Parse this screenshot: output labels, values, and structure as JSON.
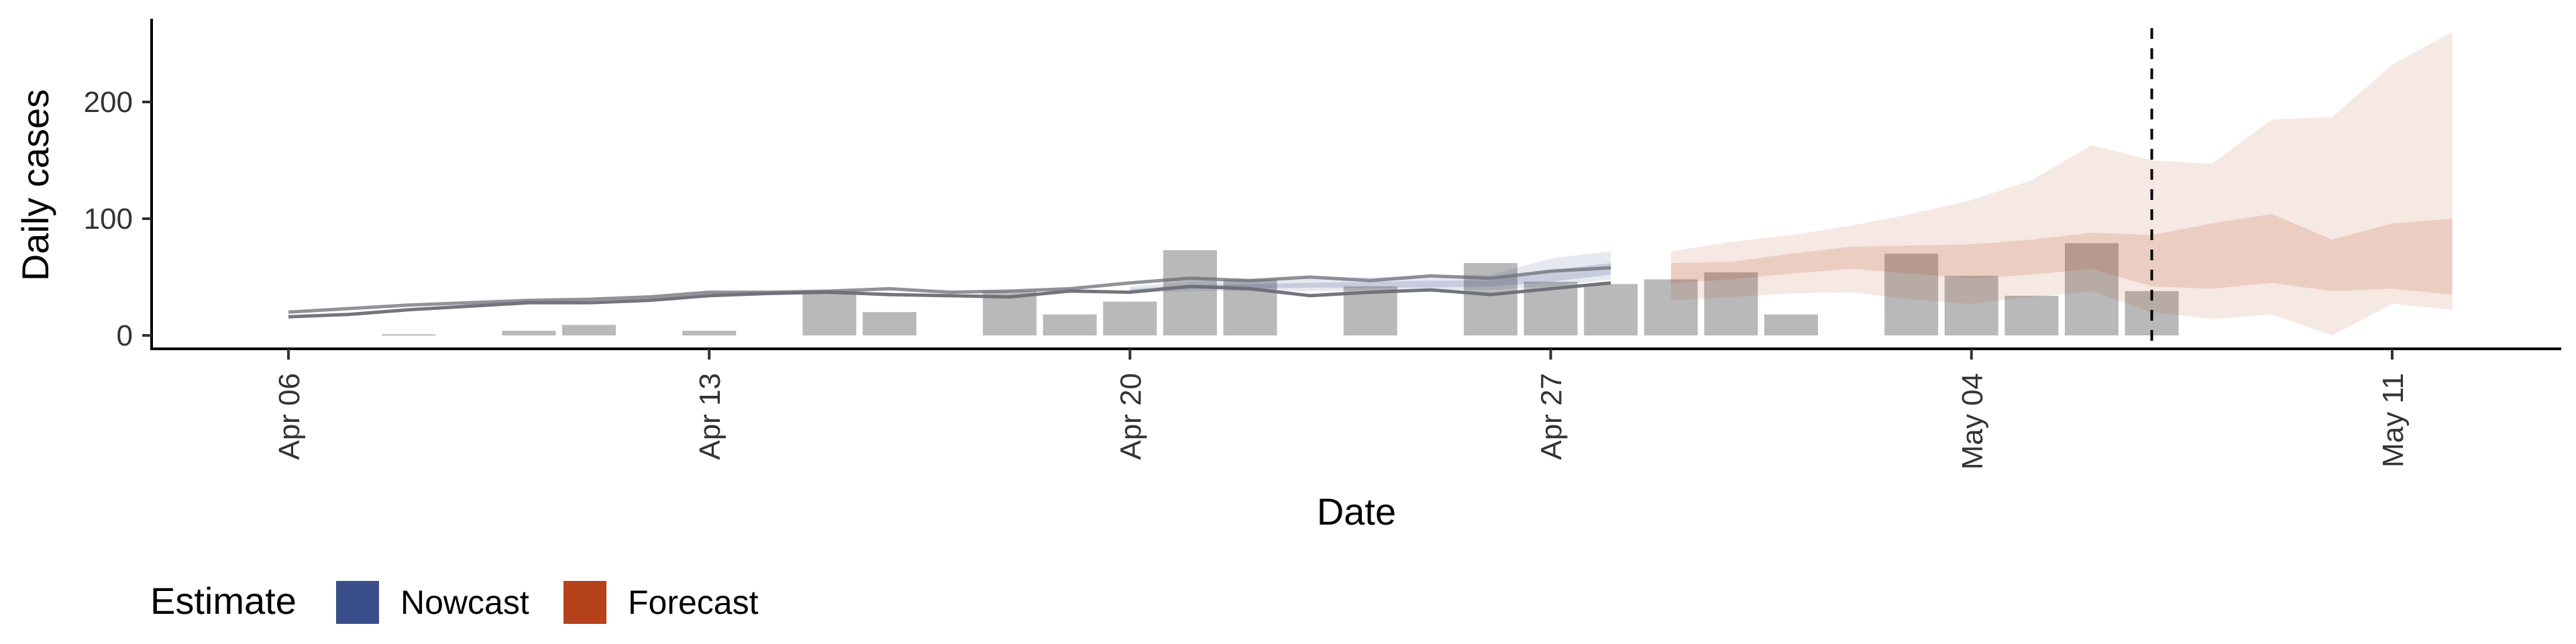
{
  "chart_data": {
    "type": "bar",
    "title": "",
    "xlabel": "Date",
    "ylabel": "Daily cases",
    "x_ticks": [
      "Apr 06",
      "Apr 13",
      "Apr 20",
      "Apr 27",
      "May 04",
      "May 11"
    ],
    "x_tick_dates": [
      "2020-04-06",
      "2020-04-13",
      "2020-04-20",
      "2020-04-27",
      "2020-05-04",
      "2020-05-11"
    ],
    "y_ticks": [
      0,
      100,
      200
    ],
    "xlim": [
      "2020-04-04",
      "2020-05-14"
    ],
    "ylim": [
      -12,
      270
    ],
    "grid": false,
    "reference_line": {
      "date": "2020-05-07",
      "style": "dashed"
    },
    "bars": {
      "color": "#9e9e9e",
      "dates": [
        "2020-04-08",
        "2020-04-10",
        "2020-04-11",
        "2020-04-13",
        "2020-04-15",
        "2020-04-16",
        "2020-04-18",
        "2020-04-19",
        "2020-04-20",
        "2020-04-21",
        "2020-04-22",
        "2020-04-24",
        "2020-04-26",
        "2020-04-27",
        "2020-04-28",
        "2020-04-29",
        "2020-04-30",
        "2020-05-01",
        "2020-05-03",
        "2020-05-04",
        "2020-05-05",
        "2020-05-06",
        "2020-05-07"
      ],
      "values": [
        1,
        4,
        9,
        4,
        38,
        20,
        38,
        18,
        29,
        73,
        48,
        42,
        62,
        46,
        44,
        48,
        54,
        18,
        70,
        51,
        34,
        79,
        38
      ]
    },
    "lines": {
      "color": "#6b6e76",
      "dates": [
        "2020-04-06",
        "2020-04-07",
        "2020-04-08",
        "2020-04-09",
        "2020-04-10",
        "2020-04-11",
        "2020-04-12",
        "2020-04-13",
        "2020-04-14",
        "2020-04-15",
        "2020-04-16",
        "2020-04-17",
        "2020-04-18",
        "2020-04-19",
        "2020-04-20",
        "2020-04-21",
        "2020-04-22",
        "2020-04-23",
        "2020-04-24",
        "2020-04-25",
        "2020-04-26",
        "2020-04-27",
        "2020-04-28"
      ],
      "series": [
        {
          "values": [
            20,
            23,
            26,
            28,
            30,
            31,
            33,
            37,
            37,
            38,
            40,
            37,
            38,
            40,
            45,
            49,
            47,
            50,
            47,
            51,
            49,
            55,
            58
          ]
        },
        {
          "values": [
            16,
            18,
            22,
            25,
            28,
            28,
            30,
            34,
            36,
            37,
            35,
            34,
            33,
            38,
            37,
            42,
            40,
            34,
            37,
            39,
            35,
            40,
            45
          ]
        }
      ]
    },
    "series": [
      {
        "name": "Nowcast",
        "color": "#3a4e8c",
        "dates": [
          "2020-04-20",
          "2020-04-21",
          "2020-04-22",
          "2020-04-23",
          "2020-04-24",
          "2020-04-25",
          "2020-04-26",
          "2020-04-27",
          "2020-04-28"
        ],
        "outer_upper": [
          42,
          46,
          48,
          49,
          50,
          51,
          52,
          66,
          72
        ],
        "outer_lower": [
          36,
          38,
          38,
          38,
          39,
          39,
          39,
          42,
          48
        ],
        "inner_upper": [
          40,
          43,
          44,
          45,
          46,
          47,
          47,
          56,
          62
        ],
        "inner_lower": [
          38,
          40,
          40,
          41,
          41,
          41,
          42,
          46,
          52
        ]
      },
      {
        "name": "Forecast",
        "color": "#b5421a",
        "dates": [
          "2020-04-29",
          "2020-04-30",
          "2020-05-01",
          "2020-05-02",
          "2020-05-03",
          "2020-05-04",
          "2020-05-05",
          "2020-05-06",
          "2020-05-07",
          "2020-05-08",
          "2020-05-09",
          "2020-05-10",
          "2020-05-11",
          "2020-05-12"
        ],
        "outer_upper": [
          72,
          80,
          86,
          94,
          104,
          116,
          133,
          163,
          150,
          147,
          185,
          187,
          232,
          260
        ],
        "outer_lower": [
          30,
          33,
          36,
          37,
          31,
          27,
          33,
          38,
          20,
          14,
          18,
          0,
          27,
          22
        ],
        "inner_upper": [
          62,
          63,
          70,
          76,
          77,
          78,
          82,
          88,
          86,
          96,
          104,
          82,
          96,
          100
        ],
        "inner_lower": [
          45,
          48,
          53,
          57,
          53,
          49,
          52,
          57,
          42,
          40,
          45,
          38,
          40,
          35
        ]
      }
    ],
    "legend": {
      "title": "Estimate",
      "position": "bottom-left",
      "items": [
        {
          "label": "Nowcast",
          "color": "#3a4e8c"
        },
        {
          "label": "Forecast",
          "color": "#b5421a"
        }
      ]
    }
  }
}
